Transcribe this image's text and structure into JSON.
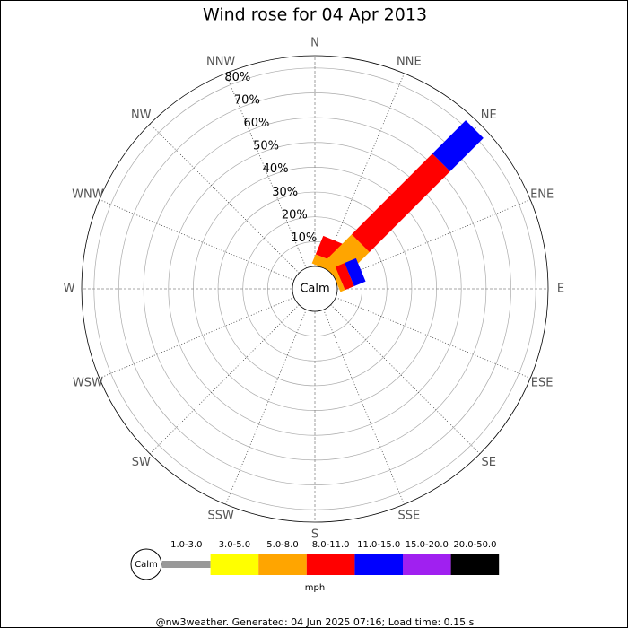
{
  "chart_data": {
    "type": "windrose",
    "title": "Wind rose for 04 Apr 2013",
    "categories": [
      "N",
      "NNE",
      "NE",
      "ENE",
      "E",
      "ESE",
      "SE",
      "SSE",
      "S",
      "SSW",
      "SW",
      "WSW",
      "W",
      "WNW",
      "NW",
      "NNW"
    ],
    "center_label": "Calm",
    "series": [
      {
        "name": "1.0-3.0",
        "color": "#999999",
        "values": [
          0,
          0,
          0,
          0,
          0,
          0,
          0,
          0,
          0,
          0,
          0,
          0,
          0,
          0,
          0,
          0
        ]
      },
      {
        "name": "3.0-5.0",
        "color": "#ffff00",
        "values": [
          0,
          0,
          0,
          0,
          0,
          0,
          0,
          0,
          0,
          0,
          0,
          0,
          0,
          0,
          0,
          0
        ]
      },
      {
        "name": "5.0-8.0",
        "color": "#ffa500",
        "values": [
          0,
          4,
          17,
          2,
          0,
          0,
          0,
          0,
          0,
          0,
          0,
          0,
          0,
          0,
          0,
          0
        ]
      },
      {
        "name": "8.0-11.0",
        "color": "#ff0000",
        "values": [
          0,
          8,
          46,
          4,
          0,
          0,
          0,
          0,
          0,
          0,
          0,
          0,
          0,
          0,
          0,
          0
        ]
      },
      {
        "name": "11.0-15.0",
        "color": "#0000ff",
        "values": [
          0,
          0,
          19,
          5,
          0,
          0,
          0,
          0,
          0,
          0,
          0,
          0,
          0,
          0,
          0,
          0
        ]
      },
      {
        "name": "15.0-20.0",
        "color": "#a020f0",
        "values": [
          0,
          0,
          0,
          0,
          0,
          0,
          0,
          0,
          0,
          0,
          0,
          0,
          0,
          0,
          0,
          0
        ]
      },
      {
        "name": "20.0-50.0",
        "color": "#000000",
        "values": [
          0,
          0,
          0,
          0,
          0,
          0,
          0,
          0,
          0,
          0,
          0,
          0,
          0,
          0,
          0,
          0
        ]
      }
    ],
    "rlim": [
      0,
      85
    ],
    "rticks": [
      {
        "value": 10,
        "label": "10%"
      },
      {
        "value": 20,
        "label": "20%"
      },
      {
        "value": 30,
        "label": "30%"
      },
      {
        "value": 40,
        "label": "40%"
      },
      {
        "value": 50,
        "label": "50%"
      },
      {
        "value": 60,
        "label": "60%"
      },
      {
        "value": 70,
        "label": "70%"
      },
      {
        "value": 80,
        "label": "80%"
      }
    ],
    "legend_unit": "mph",
    "footer": "@nw3weather. Generated: 04 Jun 2025 07:16; Load time: 0.15 s"
  }
}
